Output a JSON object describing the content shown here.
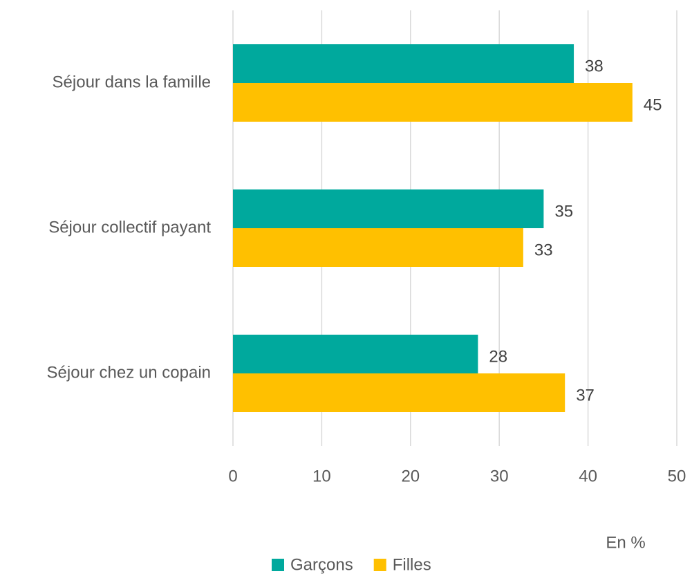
{
  "chart_data": {
    "type": "bar",
    "orientation": "horizontal",
    "categories": [
      "Séjour dans la famille",
      "Séjour collectif payant",
      "Séjour chez un copain"
    ],
    "series": [
      {
        "name": "Garçons",
        "color": "#00a99d",
        "values": [
          38.4,
          35.0,
          27.6
        ],
        "value_labels": [
          "38",
          "35",
          "28"
        ]
      },
      {
        "name": "Filles",
        "color": "#ffc000",
        "values": [
          45.0,
          32.7,
          37.4
        ],
        "value_labels": [
          "45",
          "33",
          "37"
        ]
      }
    ],
    "xlim": [
      0,
      50
    ],
    "xticks": [
      0,
      10,
      20,
      30,
      40,
      50
    ],
    "grid": true,
    "xlabel": "En %",
    "legend": "bottom"
  }
}
